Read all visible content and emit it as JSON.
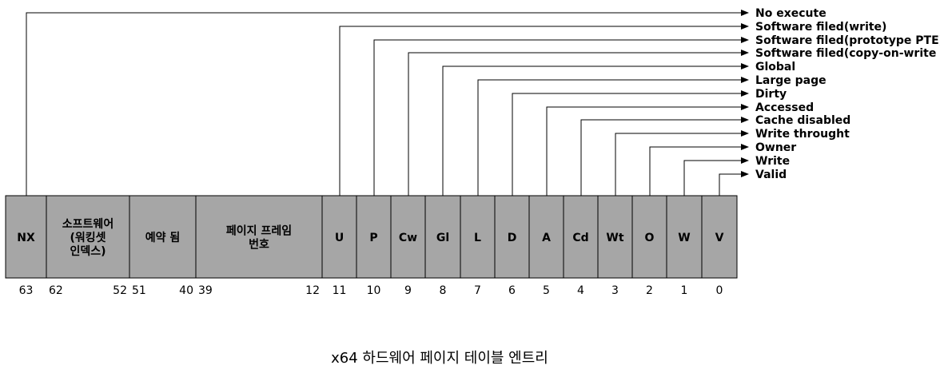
{
  "fields": [
    {
      "label": "NX",
      "hi_bit": "63",
      "lo_bit": "",
      "target": "No execute"
    },
    {
      "label": "소프트웨어\n(워킹셋\n인덱스)",
      "hi_bit": "62",
      "lo_bit": "52",
      "target": ""
    },
    {
      "label": "예약 됨",
      "hi_bit": "51",
      "lo_bit": "40",
      "target": ""
    },
    {
      "label": "페이지 프레임\n번호",
      "hi_bit": "39",
      "lo_bit": "12",
      "target": ""
    },
    {
      "label": "U",
      "hi_bit": "11",
      "lo_bit": "",
      "target": "Software filed(write)"
    },
    {
      "label": "P",
      "hi_bit": "10",
      "lo_bit": "",
      "target": "Software filed(prototype PTE)"
    },
    {
      "label": "Cw",
      "hi_bit": "9",
      "lo_bit": "",
      "target": "Software filed(copy-on-write"
    },
    {
      "label": "Gl",
      "hi_bit": "8",
      "lo_bit": "",
      "target": "Global"
    },
    {
      "label": "L",
      "hi_bit": "7",
      "lo_bit": "",
      "target": "Large page"
    },
    {
      "label": "D",
      "hi_bit": "6",
      "lo_bit": "",
      "target": "Dirty"
    },
    {
      "label": "A",
      "hi_bit": "5",
      "lo_bit": "",
      "target": "Accessed"
    },
    {
      "label": "Cd",
      "hi_bit": "4",
      "lo_bit": "",
      "target": "Cache disabled"
    },
    {
      "label": "Wt",
      "hi_bit": "3",
      "lo_bit": "",
      "target": "Write throught"
    },
    {
      "label": "O",
      "hi_bit": "2",
      "lo_bit": "",
      "target": "Owner"
    },
    {
      "label": "W",
      "hi_bit": "1",
      "lo_bit": "",
      "target": "Write"
    },
    {
      "label": "V",
      "hi_bit": "0",
      "lo_bit": "",
      "target": "Valid"
    }
  ],
  "caption": "x64 하드웨어 페이지 테이블 엔트리",
  "colors": {
    "cell_fill": "#a6a6a6",
    "line": "#000000"
  }
}
